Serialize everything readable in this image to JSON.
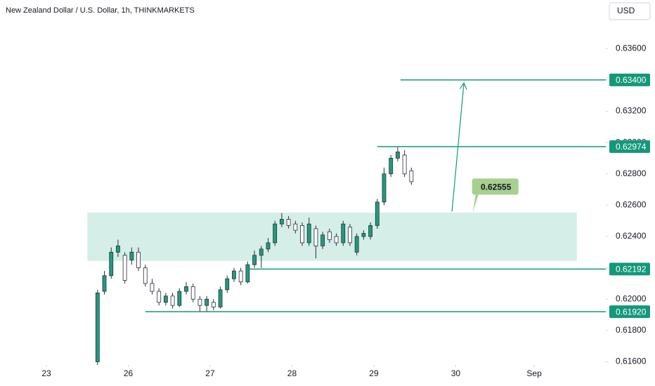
{
  "chart_data": {
    "type": "candlestick",
    "title": "New Zealand Dollar / U.S. Dollar, 1h, THINKMARKETS",
    "currency": "USD",
    "xlim": [
      -13.6,
      164
    ],
    "ylim": [
      0.6158,
      0.6391
    ],
    "xticks": [
      {
        "value": 0,
        "label": "23"
      },
      {
        "value": 24,
        "label": "26"
      },
      {
        "value": 48,
        "label": "27"
      },
      {
        "value": 72,
        "label": "28"
      },
      {
        "value": 96,
        "label": "29"
      },
      {
        "value": 120,
        "label": "30"
      },
      {
        "value": 143,
        "label": "Sep"
      }
    ],
    "yticks": [
      {
        "value": 0.616,
        "label": "0.61600"
      },
      {
        "value": 0.618,
        "label": "0.61800"
      },
      {
        "value": 0.62,
        "label": "0.62000"
      },
      {
        "value": 0.622,
        "label": "0.62200"
      },
      {
        "value": 0.624,
        "label": "0.62400"
      },
      {
        "value": 0.626,
        "label": "0.62600"
      },
      {
        "value": 0.628,
        "label": "0.62800"
      },
      {
        "value": 0.63,
        "label": "0.63000"
      },
      {
        "value": 0.632,
        "label": "0.63200"
      },
      {
        "value": 0.634,
        "label": "0.63400"
      },
      {
        "value": 0.636,
        "label": "0.63600"
      }
    ],
    "x": [
      15,
      17,
      19,
      21,
      23,
      25,
      27,
      29,
      31,
      33,
      35,
      37,
      39,
      41,
      43,
      45,
      47,
      49,
      51,
      53,
      55,
      57,
      59,
      61,
      63,
      65,
      67,
      69,
      71,
      73,
      75,
      77,
      79,
      81,
      83,
      85,
      87,
      89,
      91,
      93,
      95,
      97,
      99,
      101,
      103,
      105,
      107
    ],
    "open": [
      0.616,
      0.6205,
      0.6215,
      0.623,
      0.6228,
      0.6225,
      0.623,
      0.622,
      0.621,
      0.6205,
      0.6198,
      0.6202,
      0.6196,
      0.6205,
      0.6208,
      0.62,
      0.6196,
      0.6198,
      0.6195,
      0.6206,
      0.6213,
      0.6218,
      0.6211,
      0.6222,
      0.6228,
      0.6232,
      0.6236,
      0.6248,
      0.6251,
      0.6248,
      0.6247,
      0.6236,
      0.6245,
      0.6234,
      0.6243,
      0.624,
      0.6236,
      0.6246,
      0.623,
      0.624,
      0.624,
      0.6247,
      0.6262,
      0.628,
      0.629,
      0.6292,
      0.6282
    ],
    "high": [
      0.6206,
      0.6218,
      0.6233,
      0.6238,
      0.623,
      0.6233,
      0.6233,
      0.6222,
      0.6213,
      0.6207,
      0.6204,
      0.6204,
      0.6207,
      0.6211,
      0.621,
      0.6202,
      0.6202,
      0.62,
      0.6208,
      0.6215,
      0.622,
      0.622,
      0.6224,
      0.6231,
      0.6234,
      0.6239,
      0.625,
      0.6255,
      0.6253,
      0.625,
      0.6249,
      0.6252,
      0.6247,
      0.6243,
      0.6245,
      0.6242,
      0.625,
      0.6248,
      0.6242,
      0.6244,
      0.6249,
      0.6264,
      0.6284,
      0.6292,
      0.6297,
      0.6295,
      0.6284
    ],
    "low": [
      0.6158,
      0.6203,
      0.6213,
      0.6227,
      0.621,
      0.6222,
      0.6218,
      0.6208,
      0.6203,
      0.6196,
      0.6196,
      0.6194,
      0.6195,
      0.6203,
      0.6198,
      0.6192,
      0.6192,
      0.6193,
      0.6194,
      0.6204,
      0.6211,
      0.6209,
      0.621,
      0.622,
      0.622,
      0.623,
      0.6234,
      0.6246,
      0.6245,
      0.6242,
      0.6234,
      0.6234,
      0.6226,
      0.6232,
      0.6236,
      0.6234,
      0.6234,
      0.6234,
      0.6228,
      0.6238,
      0.6238,
      0.6245,
      0.626,
      0.6278,
      0.6288,
      0.6278,
      0.6273
    ],
    "close": [
      0.6204,
      0.6215,
      0.623,
      0.6234,
      0.6212,
      0.623,
      0.622,
      0.621,
      0.6205,
      0.6198,
      0.6202,
      0.6196,
      0.6205,
      0.6208,
      0.62,
      0.6196,
      0.62,
      0.6195,
      0.6206,
      0.6213,
      0.6218,
      0.6211,
      0.6222,
      0.6228,
      0.6232,
      0.6236,
      0.6248,
      0.6251,
      0.6247,
      0.6244,
      0.6236,
      0.6248,
      0.6234,
      0.6241,
      0.6238,
      0.6236,
      0.6248,
      0.6236,
      0.624,
      0.6242,
      0.6247,
      0.6262,
      0.628,
      0.629,
      0.6294,
      0.628,
      0.6275
    ],
    "up_color": "#1f9c7d",
    "down_color": "#ffffff",
    "wick_color": "#2a2e39",
    "zone": {
      "from": 12,
      "to": 155.5,
      "low": 0.62244,
      "high": 0.62553,
      "color": "#d5eee8"
    },
    "level_color": "#14987a",
    "levels": [
      {
        "value": 0.634,
        "label": "0.63400",
        "from": 103.8
      },
      {
        "value": 0.62974,
        "label": "0.62974",
        "from": 97
      },
      {
        "value": 0.62192,
        "label": "0.62192",
        "from": 59.5
      },
      {
        "value": 0.6192,
        "label": "0.61920",
        "from": 29
      }
    ],
    "arrow": {
      "x": [
        118.9,
        122.4
      ],
      "y": [
        0.6256,
        0.6338
      ]
    },
    "callout": {
      "value": 0.62555,
      "x": 125,
      "color": "#a6d08e"
    }
  }
}
